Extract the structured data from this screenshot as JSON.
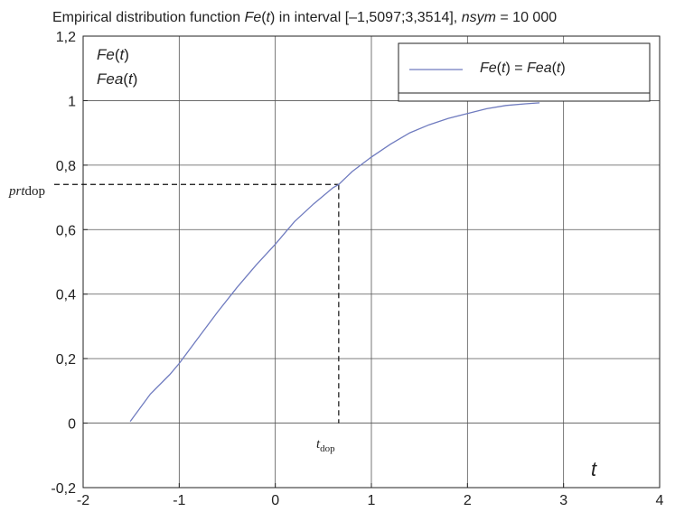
{
  "chart_data": {
    "type": "line",
    "title": {
      "prefix": "Empirical distribution function ",
      "fn": "Fe",
      "arg": "t",
      "middle": " in interval [–1,5097;3,3514],  ",
      "nsym_label": "nsym",
      "suffix": " = 10 000"
    },
    "xlabel": "t",
    "ylabel_lines": [
      {
        "fn": "Fe",
        "arg": "t"
      },
      {
        "fn": "Fea",
        "arg": "t"
      }
    ],
    "xlim": [
      -2,
      4
    ],
    "ylim": [
      -0.2,
      1.2
    ],
    "xticks": [
      -2,
      -1,
      0,
      1,
      2,
      3,
      4
    ],
    "xtick_labels": [
      "-2",
      "-1",
      "0",
      "1",
      "2",
      "3",
      "4"
    ],
    "yticks": [
      -0.2,
      0,
      0.2,
      0.4,
      0.6,
      0.8,
      1,
      1.2
    ],
    "ytick_labels": [
      "-0,2",
      "0",
      "0,2",
      "0,4",
      "0,6",
      "0,8",
      "1",
      "1,2"
    ],
    "grid": true,
    "legend": {
      "position": "top-right",
      "left_fn": "Fe",
      "left_arg": "t",
      "eq": " = ",
      "right_fn": "Fea",
      "right_arg": "t"
    },
    "series": [
      {
        "color": "#6f7bbf",
        "x": [
          -1.5097,
          -1.3,
          -1.1,
          -1.0,
          -0.8,
          -0.6,
          -0.4,
          -0.2,
          0.0,
          0.2,
          0.4,
          0.6,
          0.66,
          0.8,
          1.0,
          1.2,
          1.4,
          1.6,
          1.8,
          2.0,
          2.2,
          2.4,
          2.6,
          2.75
        ],
        "y": [
          0.005,
          0.09,
          0.15,
          0.185,
          0.265,
          0.345,
          0.42,
          0.49,
          0.555,
          0.625,
          0.68,
          0.73,
          0.74,
          0.78,
          0.825,
          0.865,
          0.9,
          0.925,
          0.945,
          0.96,
          0.975,
          0.985,
          0.99,
          0.993
        ]
      }
    ],
    "annotation": {
      "t_dop": 0.66,
      "prt_dop": 0.74,
      "y_label_italic": "prt",
      "y_label_plain": "dop",
      "x_label_italic": "t",
      "x_label_sub": "dop"
    }
  }
}
